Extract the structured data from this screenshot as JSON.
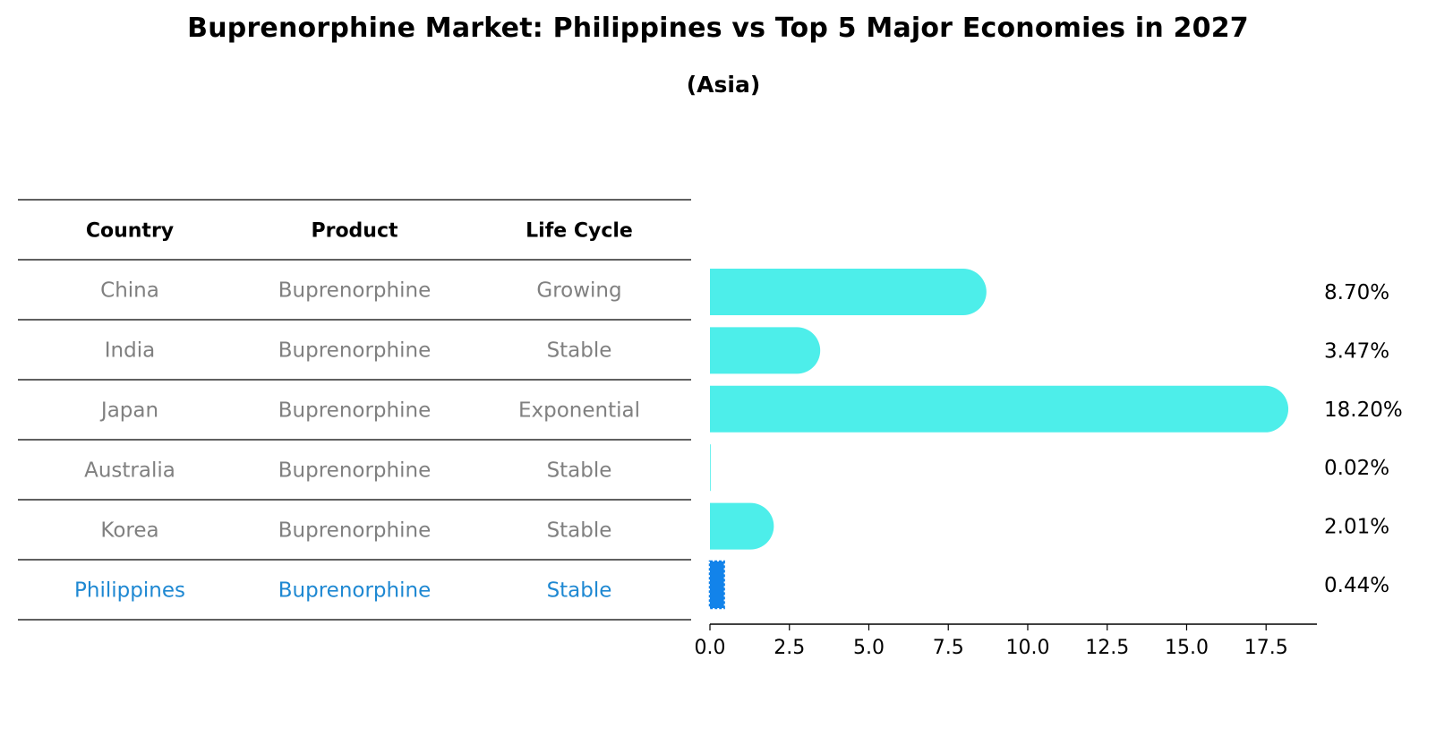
{
  "chart_data": {
    "type": "bar",
    "title": "Buprenorphine Market: Philippines vs Top 5 Major Economies in 2027",
    "subtitle": "(Asia)",
    "orientation": "horizontal",
    "table": {
      "columns": [
        "Country",
        "Product",
        "Life Cycle"
      ],
      "rows": [
        {
          "country": "China",
          "product": "Buprenorphine",
          "life_cycle": "Growing",
          "highlight": false
        },
        {
          "country": "India",
          "product": "Buprenorphine",
          "life_cycle": "Stable",
          "highlight": false
        },
        {
          "country": "Japan",
          "product": "Buprenorphine",
          "life_cycle": "Exponential",
          "highlight": false
        },
        {
          "country": "Australia",
          "product": "Buprenorphine",
          "life_cycle": "Stable",
          "highlight": false
        },
        {
          "country": "Korea",
          "product": "Buprenorphine",
          "life_cycle": "Stable",
          "highlight": false
        },
        {
          "country": "Philippines",
          "product": "Buprenorphine",
          "life_cycle": "Stable",
          "highlight": true
        }
      ]
    },
    "categories": [
      "China",
      "India",
      "Japan",
      "Australia",
      "Korea",
      "Philippines"
    ],
    "values": [
      8.7,
      3.47,
      18.2,
      0.02,
      2.01,
      0.44
    ],
    "value_labels": [
      "8.70%",
      "3.47%",
      "18.20%",
      "0.02%",
      "2.01%",
      "0.44%"
    ],
    "xlim": [
      0,
      19.1
    ],
    "xticks": [
      0.0,
      2.5,
      5.0,
      7.5,
      10.0,
      12.5,
      15.0,
      17.5
    ],
    "xtick_labels": [
      "0.0",
      "2.5",
      "5.0",
      "7.5",
      "10.0",
      "12.5",
      "15.0",
      "17.5"
    ],
    "xlabel": "",
    "ylabel": "",
    "grid": false,
    "colors": {
      "bar": "#4DEEEA",
      "highlight_bar": "#1283EA",
      "highlight_text": "#1E88D2",
      "muted_text": "#808080",
      "text": "#000000",
      "rule": "#000000"
    }
  }
}
